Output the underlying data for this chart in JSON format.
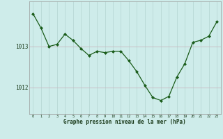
{
  "x": [
    0,
    1,
    2,
    3,
    4,
    5,
    6,
    7,
    8,
    9,
    10,
    11,
    12,
    13,
    14,
    15,
    16,
    17,
    18,
    19,
    20,
    21,
    22,
    23
  ],
  "y": [
    1013.8,
    1013.45,
    1013.0,
    1013.05,
    1013.3,
    1013.15,
    1012.95,
    1012.78,
    1012.88,
    1012.85,
    1012.88,
    1012.88,
    1012.65,
    1012.38,
    1012.05,
    1011.75,
    1011.68,
    1011.78,
    1012.25,
    1012.58,
    1013.1,
    1013.15,
    1013.25,
    1013.6
  ],
  "line_color": "#1a5c1a",
  "marker_color": "#1a5c1a",
  "bg_color": "#ceecea",
  "grid_color_v": "#b8d8d5",
  "grid_color_h": "#c8b8c0",
  "ylabel_ticks": [
    1012,
    1013
  ],
  "xlabel_ticks": [
    0,
    1,
    2,
    3,
    4,
    5,
    6,
    7,
    8,
    9,
    10,
    11,
    12,
    13,
    14,
    15,
    16,
    17,
    18,
    19,
    20,
    21,
    22,
    23
  ],
  "xlabel_label": "Graphe pression niveau de la mer (hPa)",
  "ylim": [
    1011.35,
    1014.1
  ],
  "xlim": [
    -0.5,
    23.5
  ]
}
